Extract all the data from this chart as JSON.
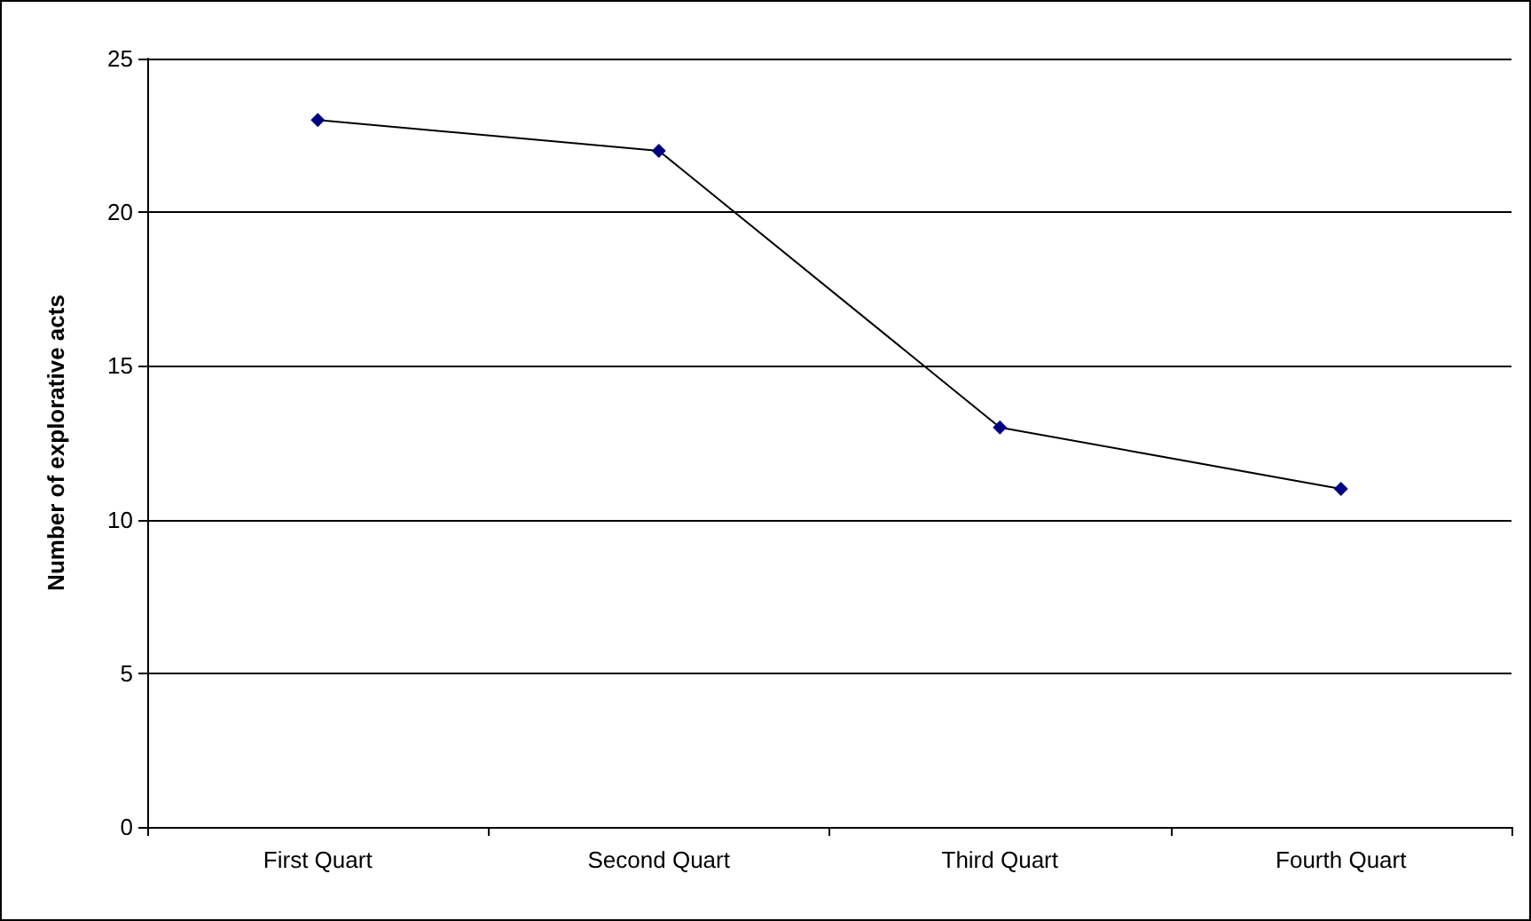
{
  "chart_data": {
    "type": "line",
    "ylabel": "Number of explorative acts",
    "categories": [
      "First Quart",
      "Second Quart",
      "Third Quart",
      "Fourth Quart"
    ],
    "series": [
      {
        "color": "#000080",
        "values": [
          23,
          22,
          13,
          11
        ]
      }
    ],
    "ylim": [
      0,
      25
    ],
    "yticks": [
      0,
      5,
      10,
      15,
      20,
      25
    ],
    "grid": "y",
    "marker": "diamond",
    "line_style": "solid"
  }
}
